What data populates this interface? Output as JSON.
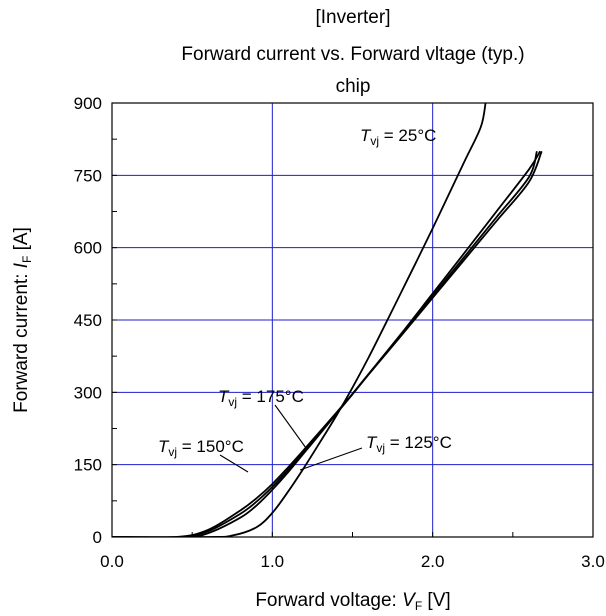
{
  "chart_data": {
    "type": "line",
    "title_lines": [
      "[Inverter]",
      "Forward current vs. Forward vltage (typ.)",
      "chip"
    ],
    "xlabel": {
      "prefix": "Forward voltage: ",
      "symbol": "V",
      "subscript": "F",
      "unit": " [V]"
    },
    "ylabel": {
      "prefix": "Forward current: ",
      "symbol": "I",
      "subscript": "F",
      "unit": " [A]"
    },
    "xlim": [
      0,
      3.0
    ],
    "ylim": [
      0,
      900
    ],
    "xticks": [
      0,
      1.0,
      2.0,
      3.0
    ],
    "xtick_labels": [
      "0.0",
      "1.0",
      "2.0",
      "3.0"
    ],
    "yticks": [
      0,
      150,
      300,
      450,
      600,
      750,
      900
    ],
    "ytick_labels": [
      "0",
      "150",
      "300",
      "450",
      "600",
      "750",
      "900"
    ],
    "grid": true,
    "grid_color": "#1f1fcc",
    "line_color": "#000000",
    "series": [
      {
        "name": "Tvj = 25°C",
        "x": [
          0.0,
          0.6,
          0.75,
          0.9,
          1.0,
          1.1,
          1.2,
          1.3,
          1.4,
          1.5,
          1.6,
          1.7,
          1.8,
          1.9,
          2.0,
          2.1,
          2.2,
          2.3,
          2.33
        ],
        "y": [
          0,
          0,
          3,
          20,
          50,
          95,
          145,
          198,
          252,
          310,
          372,
          438,
          505,
          572,
          640,
          710,
          780,
          850,
          900
        ]
      },
      {
        "name": "Tvj = 125°C",
        "x": [
          0.0,
          0.45,
          0.6,
          0.8,
          0.9,
          1.0,
          1.1,
          1.2,
          1.3,
          1.4,
          1.5,
          1.6,
          1.8,
          2.0,
          2.2,
          2.4,
          2.6,
          2.67
        ],
        "y": [
          0,
          0,
          8,
          40,
          65,
          98,
          135,
          175,
          215,
          256,
          297,
          338,
          420,
          505,
          590,
          676,
          762,
          800
        ]
      },
      {
        "name": "Tvj = 150°C",
        "x": [
          0.0,
          0.42,
          0.6,
          0.8,
          0.9,
          1.0,
          1.1,
          1.2,
          1.3,
          1.4,
          1.5,
          1.6,
          1.8,
          2.0,
          2.2,
          2.4,
          2.6,
          2.65
        ],
        "y": [
          0,
          0,
          12,
          48,
          73,
          104,
          140,
          178,
          217,
          256,
          296,
          337,
          418,
          500,
          582,
          664,
          746,
          800
        ]
      },
      {
        "name": "Tvj = 175°C",
        "x": [
          0.0,
          0.4,
          0.6,
          0.8,
          0.9,
          1.0,
          1.1,
          1.2,
          1.3,
          1.4,
          1.5,
          1.6,
          1.8,
          2.0,
          2.2,
          2.4,
          2.6,
          2.68
        ],
        "y": [
          0,
          0,
          15,
          55,
          80,
          110,
          145,
          182,
          220,
          258,
          297,
          337,
          416,
          496,
          576,
          656,
          736,
          800
        ]
      }
    ],
    "annotations": [
      {
        "symbol": "T",
        "subscript": "vj",
        "rest": " = 25°C"
      },
      {
        "symbol": "T",
        "subscript": "vj",
        "rest": " = 175°C"
      },
      {
        "symbol": "T",
        "subscript": "vj",
        "rest": " = 150°C"
      },
      {
        "symbol": "T",
        "subscript": "vj",
        "rest": " = 125°C"
      }
    ]
  }
}
